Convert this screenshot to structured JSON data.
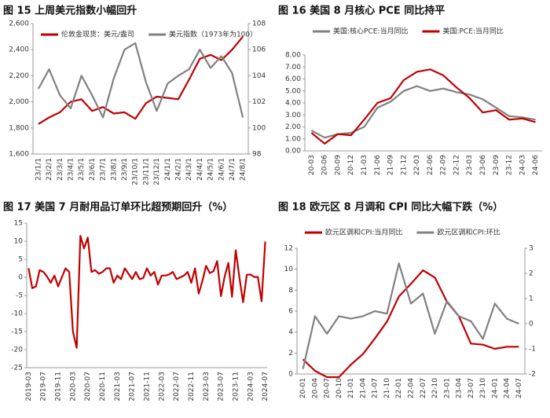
{
  "chart_data": [
    {
      "type": "line",
      "title": "图 15 上周美元指数小幅回升",
      "categories": [
        "23/1/1",
        "23/2/1",
        "23/3/1",
        "23/4/1",
        "23/5/1",
        "23/6/1",
        "23/7/1",
        "23/8/1",
        "23/9/1",
        "23/10/1",
        "23/11/1",
        "23/12/1",
        "24/1/1",
        "24/2/1",
        "24/3/1",
        "24/4/1",
        "24/5/1",
        "24/6/1",
        "24/7/1",
        "24/8/1"
      ],
      "series": [
        {
          "name": "伦敦金现货：美元/盎司",
          "color": "#c00000",
          "values": [
            1830,
            1880,
            1920,
            2000,
            2020,
            1930,
            1960,
            1910,
            1920,
            1870,
            1990,
            2040,
            2030,
            2020,
            2170,
            2330,
            2360,
            2320,
            2400,
            2500
          ]
        },
        {
          "name": "美元指数（1973年为100）",
          "color": "#808080",
          "axis": "y2",
          "values": [
            103.0,
            104.5,
            102.5,
            101.5,
            104.0,
            102.5,
            100.8,
            103.8,
            106.0,
            106.5,
            103.5,
            101.3,
            103.4,
            104.0,
            104.5,
            106.0,
            104.6,
            105.5,
            104.2,
            100.8
          ]
        }
      ],
      "ylim": [
        1600,
        2600
      ],
      "yticks": [
        {
          "value": 1600,
          "label": "1,600"
        },
        {
          "value": 1800,
          "label": "1,800"
        },
        {
          "value": 2000,
          "label": "2,000"
        },
        {
          "value": 2200,
          "label": "2,200"
        },
        {
          "value": 2400,
          "label": "2,400"
        },
        {
          "value": 2600,
          "label": "2,600"
        }
      ],
      "y2lim": [
        98,
        108
      ],
      "y2ticks": [
        98,
        100,
        102,
        104,
        106,
        108
      ]
    },
    {
      "type": "line",
      "title": "图 16 美国 8 月核心 PCE 同比持平",
      "categories": [
        "20-03",
        "20-06",
        "20-09",
        "20-12",
        "21-03",
        "21-06",
        "21-09",
        "21-12",
        "22-03",
        "22-06",
        "22-09",
        "22-12",
        "23-03",
        "23-06",
        "23-09",
        "23-12",
        "24-03",
        "24-06"
      ],
      "series": [
        {
          "name": "美国:核心PCE:当月同比",
          "color": "#808080",
          "values": [
            1.7,
            1.1,
            1.4,
            1.5,
            2.0,
            3.6,
            4.1,
            5.0,
            5.4,
            5.0,
            5.2,
            4.9,
            4.7,
            4.3,
            3.6,
            2.9,
            2.8,
            2.6
          ]
        },
        {
          "name": "美国:PCE:当月同比",
          "color": "#c00000",
          "values": [
            1.5,
            0.6,
            1.4,
            1.3,
            2.6,
            4.0,
            4.4,
            5.9,
            6.6,
            6.8,
            6.3,
            5.3,
            4.4,
            3.2,
            3.4,
            2.6,
            2.7,
            2.4
          ]
        }
      ],
      "ylim": [
        0,
        8
      ],
      "yticks": [
        {
          "value": 0,
          "label": "0.00"
        },
        {
          "value": 1,
          "label": "1.00"
        },
        {
          "value": 2,
          "label": "2.00"
        },
        {
          "value": 3,
          "label": "3.00"
        },
        {
          "value": 4,
          "label": "4.00"
        },
        {
          "value": 5,
          "label": "5.00"
        },
        {
          "value": 6,
          "label": "6.00"
        },
        {
          "value": 7,
          "label": "7.00"
        },
        {
          "value": 8,
          "label": "8.00"
        }
      ]
    },
    {
      "type": "line",
      "title": "图 17 美国 7 月耐用品订单环比超预期回升（%）",
      "categories": [
        "2019-03",
        null,
        null,
        null,
        "2019-07",
        null,
        null,
        null,
        "2019-11",
        null,
        null,
        null,
        "2020-03",
        null,
        null,
        null,
        "2020-07",
        null,
        null,
        null,
        "2020-11",
        null,
        null,
        null,
        "2021-03",
        null,
        null,
        null,
        "2021-07",
        null,
        null,
        null,
        "2021-11",
        null,
        null,
        null,
        "2022-03",
        null,
        null,
        null,
        "2022-07",
        null,
        null,
        null,
        "2022-11",
        null,
        null,
        null,
        "2023-03",
        null,
        null,
        null,
        "2023-07",
        null,
        null,
        null,
        "2023-11",
        null,
        null,
        null,
        "2024-03",
        null,
        null,
        null,
        "2024-07"
      ],
      "series": [
        {
          "color": "#c00000",
          "values": [
            2.5,
            -3,
            -2.5,
            2,
            1.5,
            0.2,
            -1.5,
            0.5,
            -2.5,
            0,
            2.5,
            1.5,
            -15,
            -19.5,
            11.5,
            8,
            11,
            1.5,
            2,
            1,
            1.5,
            2.5,
            2.5,
            -1.5,
            0.5,
            -0.5,
            2.5,
            1,
            -0.5,
            1.5,
            -0.5,
            -0.2,
            2.5,
            0.5,
            1.5,
            -2,
            0.5,
            0.5,
            0.8,
            1.5,
            -0.5,
            0,
            0.5,
            1.5,
            -1.5,
            2.5,
            -4.5,
            -1,
            3.2,
            1.2,
            1.7,
            4.5,
            -5.2,
            0.2,
            4,
            -5.4,
            7.5,
            0,
            -6.9,
            0.7,
            0.8,
            0.1,
            0.1,
            -6.6,
            9.9
          ]
        }
      ],
      "ylim": [
        -25,
        15
      ],
      "yticks": [
        -25,
        -20,
        -15,
        -10,
        -5,
        0,
        5,
        10,
        15
      ]
    },
    {
      "type": "line",
      "title": "图 18 欧元区 8 月调和 CPI 同比大幅下跌（%）",
      "categories": [
        "20-01",
        "20-04",
        "20-07",
        "20-10",
        "21-01",
        "21-04",
        "21-07",
        "21-10",
        "22-01",
        "22-04",
        "22-07",
        "22-10",
        "23-01",
        "23-04",
        "23-07",
        "23-10",
        "24-01",
        "24-04",
        "24-07"
      ],
      "series": [
        {
          "name": "欧元区调和CPI:当月同比",
          "color": "#c00000",
          "values": [
            1.4,
            0.3,
            -0.3,
            -0.3,
            0.9,
            1.9,
            3.4,
            5.0,
            7.4,
            8.6,
            9.9,
            9.2,
            6.9,
            5.5,
            2.9,
            2.8,
            2.4,
            2.6,
            2.6
          ]
        },
        {
          "name": "欧元区调和CPI:环比",
          "color": "#808080",
          "axis": "y2",
          "values": [
            -1.8,
            0.3,
            -0.4,
            0.3,
            0.2,
            0.3,
            0.5,
            0.4,
            2.4,
            0.8,
            1.2,
            -0.4,
            0.9,
            0.3,
            0.1,
            -0.6,
            0.8,
            0.2,
            0.0
          ]
        }
      ],
      "ylim": [
        0,
        12
      ],
      "yticks": [
        0,
        2,
        4,
        6,
        8,
        10,
        12
      ],
      "y2lim": [
        -2,
        3
      ],
      "y2ticks": [
        -2,
        -1,
        0,
        1,
        2,
        3
      ]
    }
  ]
}
